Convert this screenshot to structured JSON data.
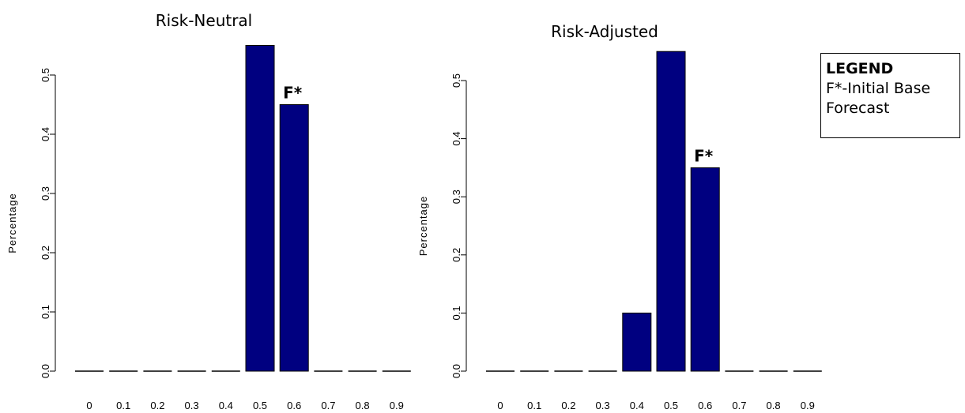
{
  "chart_data": [
    {
      "type": "bar",
      "title": "Risk-Neutral",
      "xlabel": "",
      "ylabel": "Percentage",
      "categories": [
        "0",
        "0.1",
        "0.2",
        "0.3",
        "0.4",
        "0.5",
        "0.6",
        "0.7",
        "0.8",
        "0.9"
      ],
      "values": [
        0,
        0,
        0,
        0,
        0,
        0.55,
        0.45,
        0,
        0,
        0
      ],
      "ylim": [
        0,
        0.55
      ],
      "yticks": [
        "0.0",
        "0.1",
        "0.2",
        "0.3",
        "0.4",
        "0.5"
      ],
      "bar_color": "#000080",
      "annotations": [
        {
          "text": "F*",
          "category": "0.6"
        }
      ]
    },
    {
      "type": "bar",
      "title": "Risk-Adjusted",
      "xlabel": "",
      "ylabel": "Percentage",
      "categories": [
        "0",
        "0.1",
        "0.2",
        "0.3",
        "0.4",
        "0.5",
        "0.6",
        "0.7",
        "0.8",
        "0.9"
      ],
      "values": [
        0,
        0,
        0,
        0,
        0.1,
        0.55,
        0.35,
        0,
        0,
        0
      ],
      "ylim": [
        0,
        0.55
      ],
      "yticks": [
        "0.0",
        "0.1",
        "0.2",
        "0.3",
        "0.4",
        "0.5"
      ],
      "bar_color": "#000080",
      "annotations": [
        {
          "text": "F*",
          "category": "0.6"
        }
      ]
    }
  ],
  "legend": {
    "title": "LEGEND",
    "lines": [
      "F*-Initial Base",
      "Forecast"
    ]
  }
}
